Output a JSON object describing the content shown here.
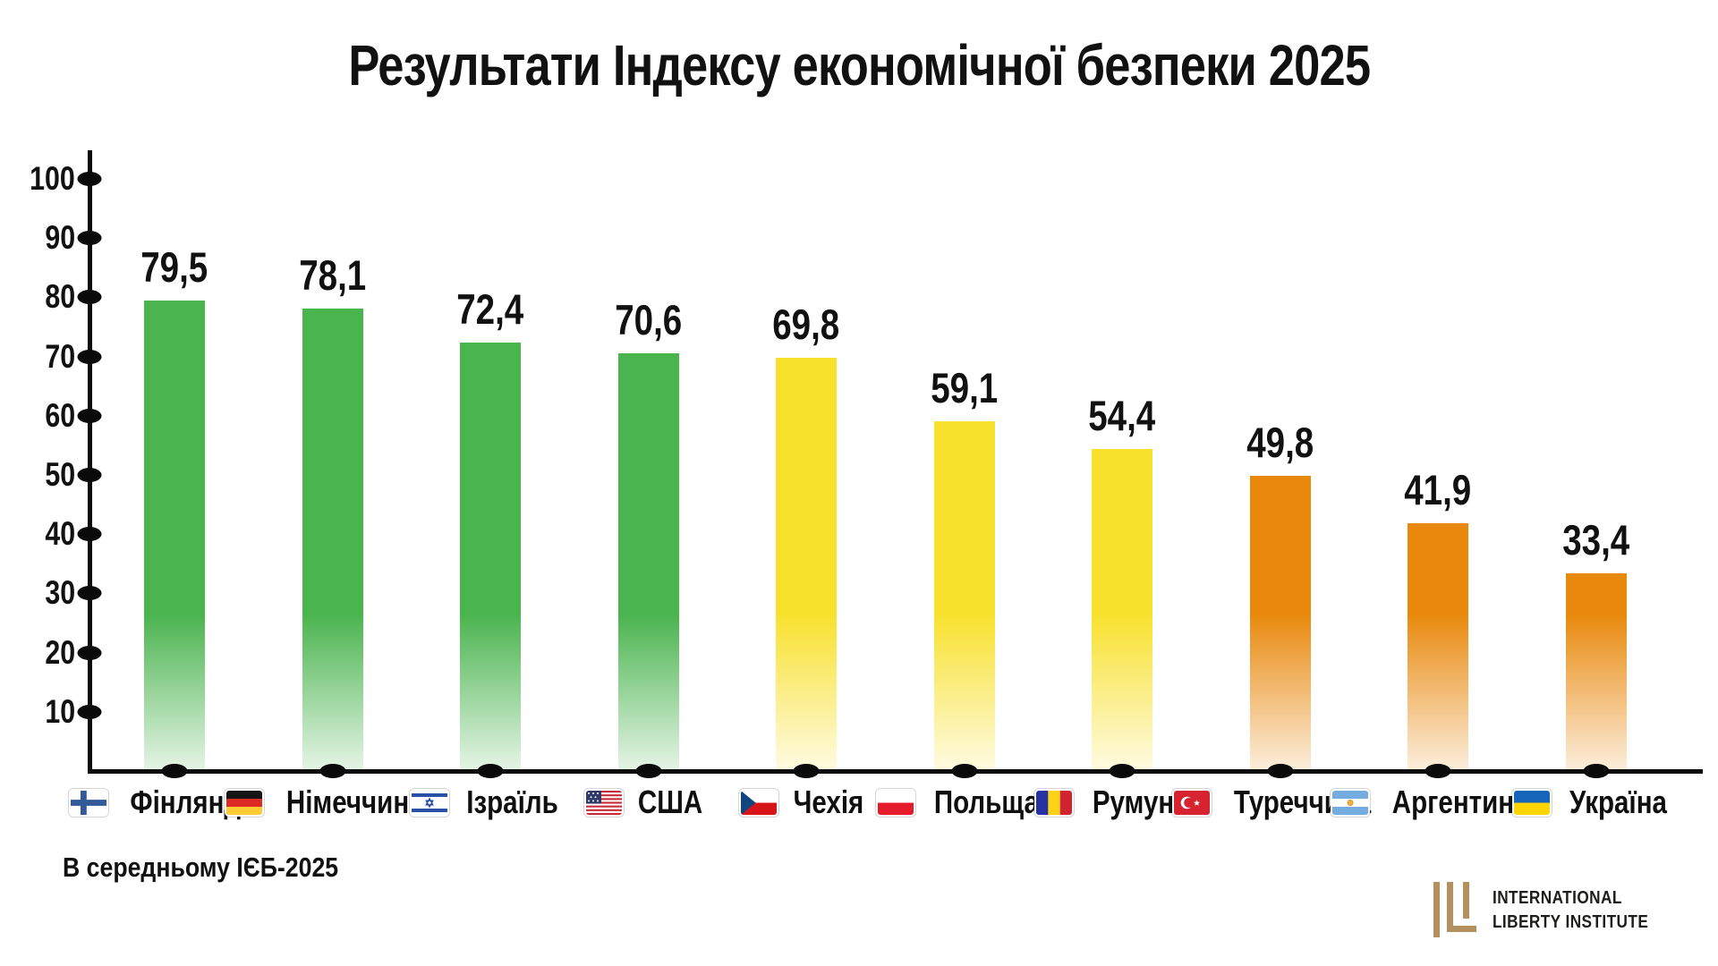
{
  "page": {
    "background": "#ffffff"
  },
  "chart_data": {
    "type": "bar",
    "title": "Результати Індексу економічної безпеки 2025",
    "xlabel": "",
    "ylabel": "",
    "ylim": [
      0,
      100
    ],
    "yticks": [
      100,
      90,
      80,
      70,
      60,
      50,
      40,
      30,
      20,
      10
    ],
    "grid": false,
    "legend_position": "none",
    "decimal_separator": ",",
    "bars": [
      {
        "country": "Фінляндія",
        "flag": "finland",
        "value": 79.5,
        "label": "79,5",
        "color_key": "green"
      },
      {
        "country": "Німеччина",
        "flag": "germany",
        "value": 78.1,
        "label": "78,1",
        "color_key": "green"
      },
      {
        "country": "Ізраїль",
        "flag": "israel",
        "value": 72.4,
        "label": "72,4",
        "color_key": "green"
      },
      {
        "country": "США",
        "flag": "usa",
        "value": 70.6,
        "label": "70,6",
        "color_key": "green"
      },
      {
        "country": "Чехія",
        "flag": "czechia",
        "value": 69.8,
        "label": "69,8",
        "color_key": "yellow"
      },
      {
        "country": "Польща",
        "flag": "poland",
        "value": 59.1,
        "label": "59,1",
        "color_key": "yellow"
      },
      {
        "country": "Румунія",
        "flag": "romania",
        "value": 54.4,
        "label": "54,4",
        "color_key": "yellow"
      },
      {
        "country": "Туреччина",
        "flag": "turkey",
        "value": 49.8,
        "label": "49,8",
        "color_key": "orange"
      },
      {
        "country": "Аргентина",
        "flag": "argentina",
        "value": 41.9,
        "label": "41,9",
        "color_key": "orange"
      },
      {
        "country": "Україна",
        "flag": "ukraine",
        "value": 33.4,
        "label": "33,4",
        "color_key": "orange"
      }
    ],
    "palette": {
      "green": "#4ab44e",
      "yellow": "#f8e12d",
      "orange": "#e8890d",
      "axis": "#0a0a0a",
      "text": "#111111"
    }
  },
  "footer": {
    "note": "В середньому ІЄБ-2025"
  },
  "logo": {
    "line1": "INTERNATIONAL",
    "line2": "LIBERTY INSTITUTE",
    "monogram": "ILI",
    "color": "#b5905f"
  }
}
